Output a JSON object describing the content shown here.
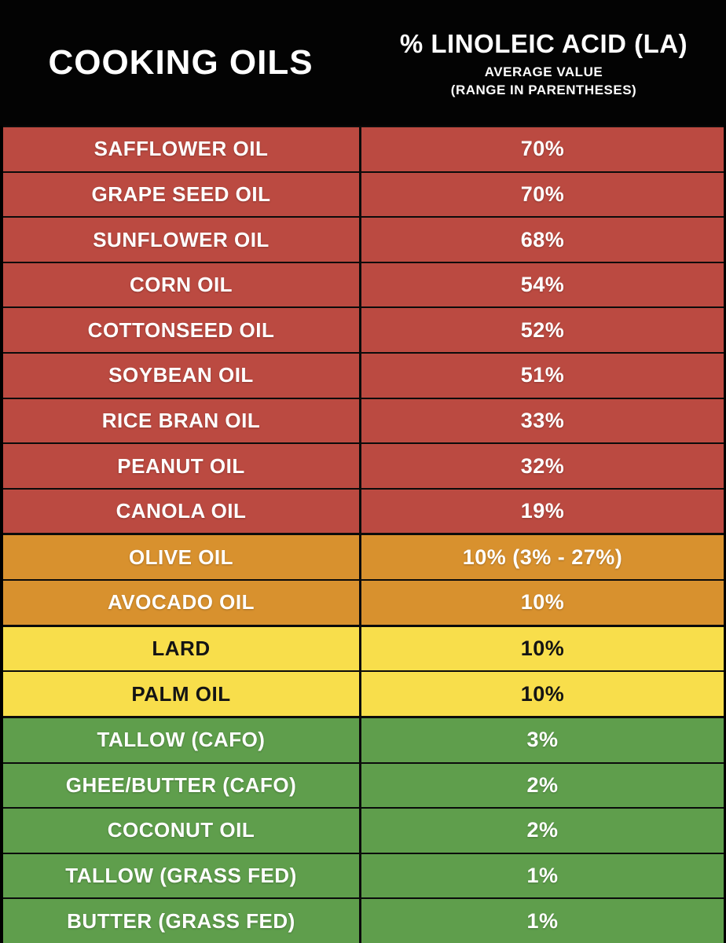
{
  "header": {
    "left_title": "COOKING OILS",
    "right_title": "% LINOLEIC ACID (LA)",
    "right_subtitle1": "AVERAGE VALUE",
    "right_subtitle2": "(RANGE IN PARENTHESES)"
  },
  "colors": {
    "header_bg": "#030303",
    "red": "#bb4a41",
    "orange": "#d8912e",
    "yellow": "#f8de4b",
    "green": "#5f9e4c"
  },
  "table": {
    "rows": [
      {
        "name": "SAFFLOWER OIL",
        "value": "70%",
        "band": "red"
      },
      {
        "name": "GRAPE SEED OIL",
        "value": "70%",
        "band": "red"
      },
      {
        "name": "SUNFLOWER OIL",
        "value": "68%",
        "band": "red"
      },
      {
        "name": "CORN OIL",
        "value": "54%",
        "band": "red"
      },
      {
        "name": "COTTONSEED OIL",
        "value": "52%",
        "band": "red"
      },
      {
        "name": "SOYBEAN OIL",
        "value": "51%",
        "band": "red"
      },
      {
        "name": "RICE BRAN OIL",
        "value": "33%",
        "band": "red"
      },
      {
        "name": "PEANUT OIL",
        "value": "32%",
        "band": "red"
      },
      {
        "name": "CANOLA OIL",
        "value": "19%",
        "band": "red"
      },
      {
        "name": "OLIVE OIL",
        "value": "10% (3% - 27%)",
        "band": "orange"
      },
      {
        "name": "AVOCADO OIL",
        "value": "10%",
        "band": "orange"
      },
      {
        "name": "LARD",
        "value": "10%",
        "band": "yellow"
      },
      {
        "name": "PALM OIL",
        "value": "10%",
        "band": "yellow"
      },
      {
        "name": "TALLOW (CAFO)",
        "value": "3%",
        "band": "green"
      },
      {
        "name": "GHEE/BUTTER (CAFO)",
        "value": "2%",
        "band": "green"
      },
      {
        "name": "COCONUT OIL",
        "value": "2%",
        "band": "green"
      },
      {
        "name": "TALLOW (GRASS FED)",
        "value": "1%",
        "band": "green"
      },
      {
        "name": "BUTTER (GRASS FED)",
        "value": "1%",
        "band": "green"
      }
    ]
  },
  "chart_data": {
    "type": "table",
    "title": "% LINOLEIC ACID (LA)",
    "subtitle": "AVERAGE VALUE (RANGE IN PARENTHESES)",
    "columns": [
      "COOKING OILS",
      "% LINOLEIC ACID (LA)"
    ],
    "categories": [
      "SAFFLOWER OIL",
      "GRAPE SEED OIL",
      "SUNFLOWER OIL",
      "CORN OIL",
      "COTTONSEED OIL",
      "SOYBEAN OIL",
      "RICE BRAN OIL",
      "PEANUT OIL",
      "CANOLA OIL",
      "OLIVE OIL",
      "AVOCADO OIL",
      "LARD",
      "PALM OIL",
      "TALLOW (CAFO)",
      "GHEE/BUTTER (CAFO)",
      "COCONUT OIL",
      "TALLOW (GRASS FED)",
      "BUTTER (GRASS FED)"
    ],
    "values": [
      70,
      70,
      68,
      54,
      52,
      51,
      33,
      32,
      19,
      10,
      10,
      10,
      10,
      3,
      2,
      2,
      1,
      1
    ],
    "value_labels": [
      "70%",
      "70%",
      "68%",
      "54%",
      "52%",
      "51%",
      "33%",
      "32%",
      "19%",
      "10% (3% - 27%)",
      "10%",
      "10%",
      "10%",
      "3%",
      "2%",
      "2%",
      "1%",
      "1%"
    ],
    "annotations": {
      "olive_oil_range": "3% - 27%"
    },
    "band_assignment": [
      "red",
      "red",
      "red",
      "red",
      "red",
      "red",
      "red",
      "red",
      "red",
      "orange",
      "orange",
      "yellow",
      "yellow",
      "green",
      "green",
      "green",
      "green",
      "green"
    ],
    "band_colors": {
      "red": "#bb4a41",
      "orange": "#d8912e",
      "yellow": "#f8de4b",
      "green": "#5f9e4c"
    }
  }
}
